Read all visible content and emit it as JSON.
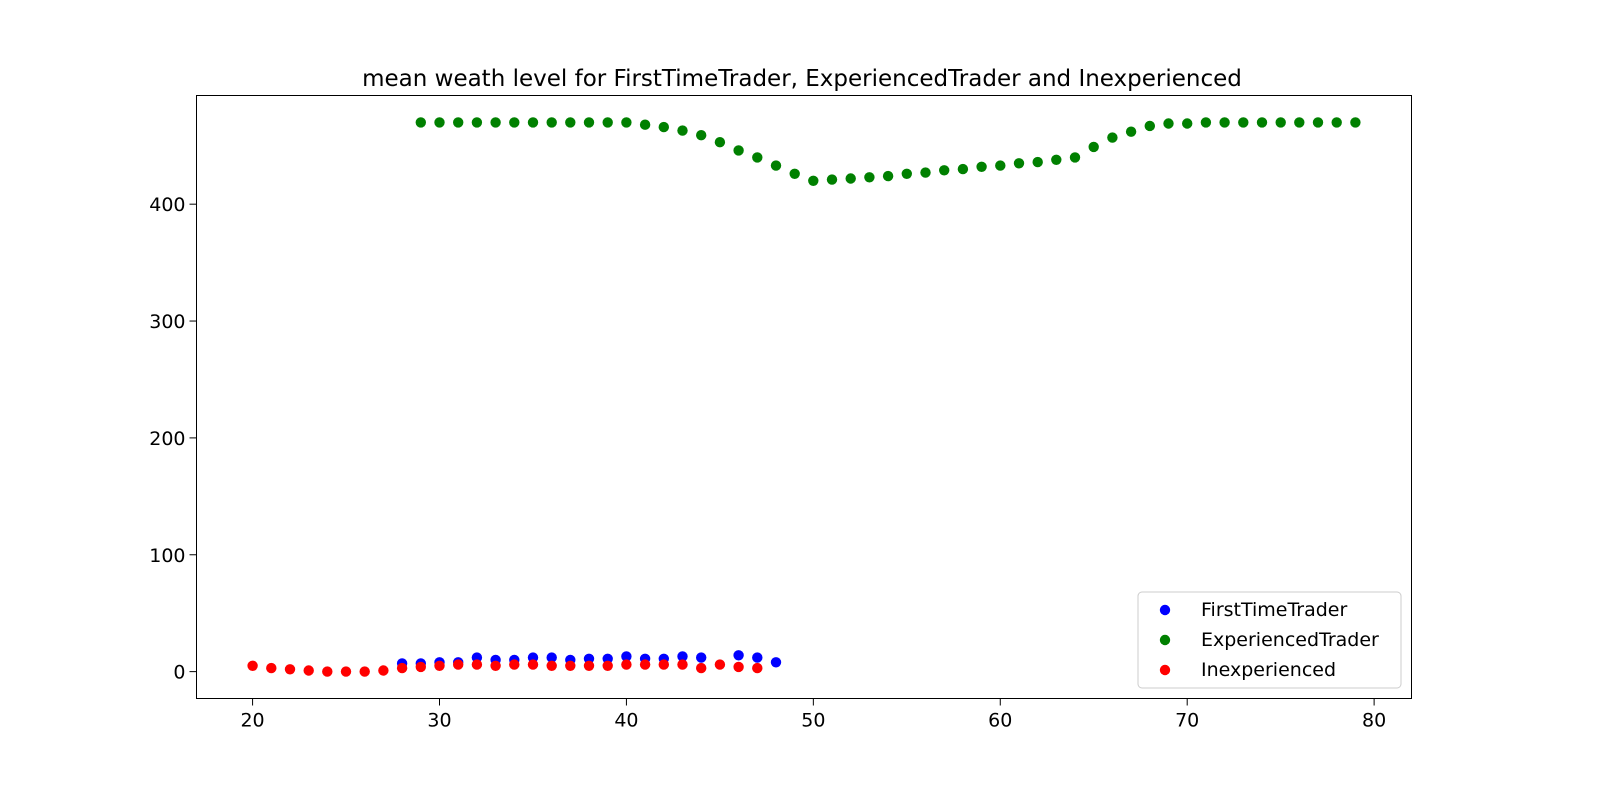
{
  "chart_data": {
    "type": "scatter",
    "title": "mean weath level for FirstTimeTrader, ExperiencedTrader and Inexperienced",
    "xlabel": "",
    "ylabel": "",
    "xlim": [
      17,
      82
    ],
    "ylim": [
      -23,
      493
    ],
    "xticks": [
      20,
      30,
      40,
      50,
      60,
      70,
      80
    ],
    "yticks": [
      0,
      100,
      200,
      300,
      400
    ],
    "grid": false,
    "legend_position": "lower-right",
    "series": [
      {
        "name": "FirstTimeTrader",
        "color": "#0000ff",
        "x": [
          28,
          29,
          30,
          31,
          32,
          33,
          34,
          35,
          36,
          37,
          38,
          39,
          40,
          41,
          42,
          43,
          44,
          46,
          47,
          48
        ],
        "y": [
          7,
          7,
          8,
          8,
          12,
          10,
          10,
          12,
          12,
          10,
          11,
          11,
          13,
          11,
          11,
          13,
          12,
          14,
          12,
          8
        ]
      },
      {
        "name": "ExperiencedTrader",
        "color": "#008000",
        "x": [
          29,
          30,
          31,
          32,
          33,
          34,
          35,
          36,
          37,
          38,
          39,
          40,
          41,
          42,
          43,
          44,
          45,
          46,
          47,
          48,
          49,
          50,
          51,
          52,
          53,
          54,
          55,
          56,
          57,
          58,
          59,
          60,
          61,
          62,
          63,
          64,
          65,
          66,
          67,
          68,
          69,
          70,
          71,
          72,
          73,
          74,
          75,
          76,
          77,
          78,
          79
        ],
        "y": [
          470,
          470,
          470,
          470,
          470,
          470,
          470,
          470,
          470,
          470,
          470,
          470,
          468,
          466,
          463,
          459,
          453,
          446,
          440,
          433,
          426,
          420,
          421,
          422,
          423,
          424,
          426,
          427,
          429,
          430,
          432,
          433,
          435,
          436,
          438,
          440,
          449,
          457,
          462,
          467,
          469,
          469,
          470,
          470,
          470,
          470,
          470,
          470,
          470,
          470,
          470
        ]
      },
      {
        "name": "Inexperienced",
        "color": "#ff0000",
        "x": [
          20,
          21,
          22,
          23,
          24,
          25,
          26,
          27,
          28,
          29,
          30,
          31,
          32,
          33,
          34,
          35,
          36,
          37,
          38,
          39,
          40,
          41,
          42,
          43,
          44,
          45,
          46,
          47
        ],
        "y": [
          5,
          3,
          2,
          1,
          0,
          0,
          0,
          1,
          3,
          4,
          5,
          6,
          6,
          5,
          6,
          6,
          5,
          5,
          5,
          5,
          6,
          6,
          6,
          6,
          3,
          6,
          4,
          3
        ]
      }
    ]
  }
}
